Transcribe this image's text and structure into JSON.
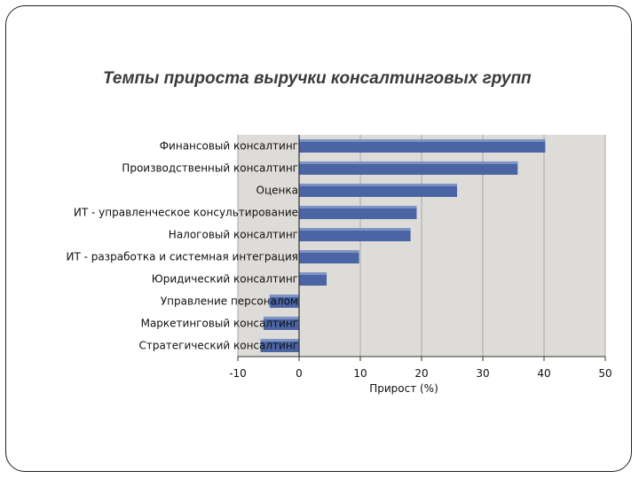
{
  "title": "Темпы прироста выручки консалтинговых групп",
  "chart_data": {
    "type": "bar",
    "orientation": "horizontal",
    "title": "Темпы прироста выручки консалтинговых групп",
    "categories": [
      "Финансовый консалтинг",
      "Производственный консалтинг",
      "Оценка",
      "ИТ - управленческое консультирование",
      "Налоговый консалтинг",
      "ИТ - разработка и системная интеграция",
      "Юридический консалтинг",
      "Управление персоналом",
      "Маркетинговый консалтинг",
      "Стратегический консалтинг"
    ],
    "values": [
      40.2,
      35.7,
      25.8,
      19.2,
      18.2,
      9.8,
      4.5,
      -4.8,
      -5.8,
      -6.3
    ],
    "xlabel": "Прирост (%)",
    "ylabel": "",
    "xlim": [
      -10,
      50
    ],
    "xticks": [
      -10,
      0,
      10,
      20,
      30,
      40,
      50
    ],
    "grid": true,
    "colors": {
      "bar": "#4a64a4",
      "bar_highlight": "#7d93c4",
      "plot_bg": "#dedcd8",
      "grid": "#a9a9a9"
    }
  }
}
